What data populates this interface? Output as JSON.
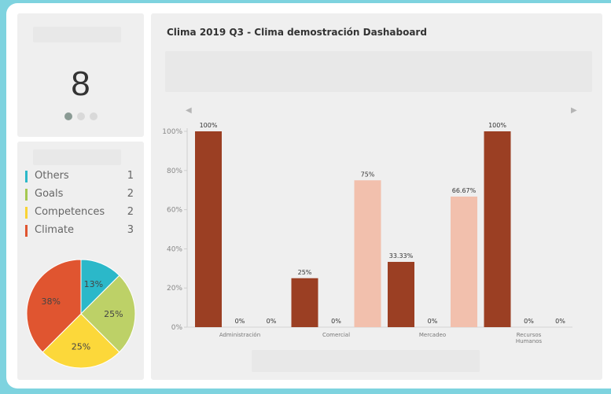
{
  "kpi": {
    "value": "8",
    "dots": [
      true,
      false,
      false
    ]
  },
  "legend": {
    "items": [
      {
        "label": "Others",
        "count": "1",
        "color": "#2bb8c9"
      },
      {
        "label": "Goals",
        "count": "2",
        "color": "#a5c851"
      },
      {
        "label": "Competences",
        "count": "2",
        "color": "#f9d334"
      },
      {
        "label": "Climate",
        "count": "3",
        "color": "#e05530"
      }
    ]
  },
  "pie": {
    "slices": [
      {
        "label": "13%",
        "value": 12.5,
        "color": "#2bb8c9"
      },
      {
        "label": "25%",
        "value": 25,
        "color": "#bdd167"
      },
      {
        "label": "25%",
        "value": 25,
        "color": "#fcd83a"
      },
      {
        "label": "38%",
        "value": 37.5,
        "color": "#e05530"
      }
    ]
  },
  "chart": {
    "title": "Clima 2019 Q3 - Clima demostración Dashaboard",
    "nav": {
      "prev": "◀",
      "next": "▶"
    }
  },
  "chart_data": {
    "type": "bar",
    "categories": [
      "Administración",
      "Comercial",
      "Mercadeo",
      "Recursos\nHumanos"
    ],
    "series": [
      {
        "values": [
          100,
          25,
          33.33,
          100
        ],
        "labels": [
          "100%",
          "25%",
          "33.33%",
          "100%"
        ],
        "color": "#9b3f23"
      },
      {
        "values": [
          0,
          0,
          0,
          0
        ],
        "labels": [
          "0%",
          "0%",
          "0%",
          "0%"
        ],
        "color": "#c9c9c9"
      },
      {
        "values": [
          0,
          75,
          66.67,
          0
        ],
        "labels": [
          "0%",
          "75%",
          "66.67%",
          "0%"
        ],
        "color": "#f2c0ad"
      }
    ],
    "ylim": [
      0,
      100
    ],
    "yticks": [
      0,
      20,
      40,
      60,
      80,
      100
    ],
    "ytick_labels": [
      "0%",
      "20%",
      "40%",
      "60%",
      "80%",
      "100%"
    ],
    "grid": false
  }
}
